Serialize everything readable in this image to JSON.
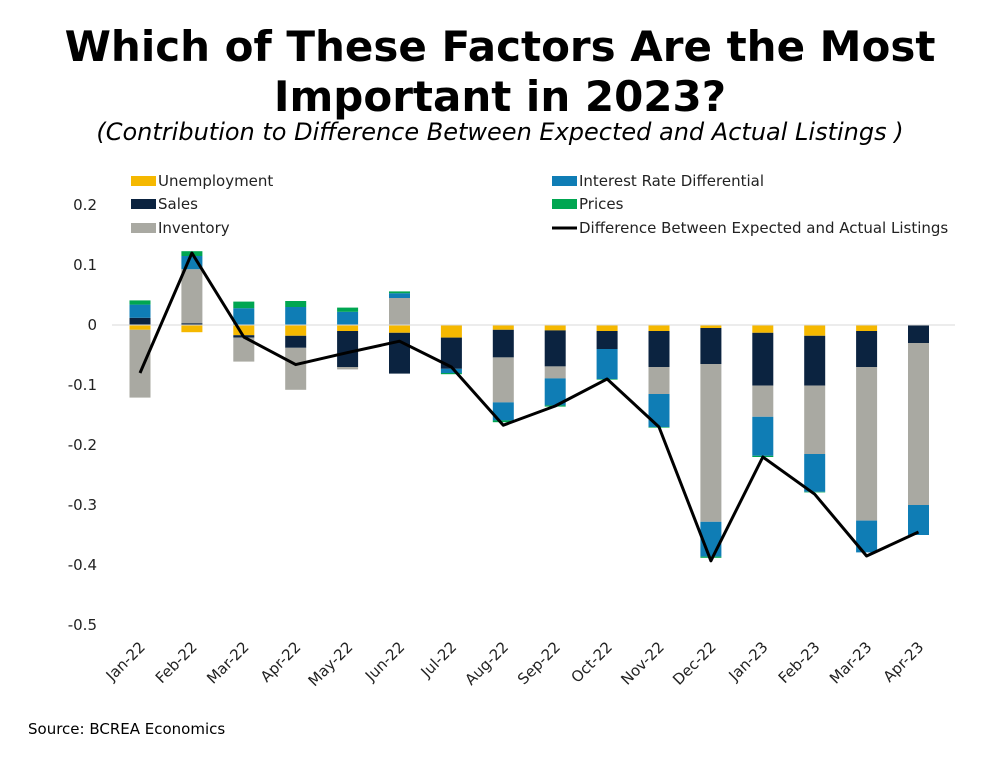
{
  "title": "Which of These Factors Are the Most Important in 2023?",
  "subtitle": "(Contribution to Difference Between Expected and Actual Listings )",
  "source": "Source: BCREA Economics",
  "colors": {
    "unemployment": "#F5B800",
    "interest": "#0F7DB5",
    "sales": "#0B2340",
    "prices": "#00A651",
    "inventory": "#A9A9A2",
    "line": "#000000"
  },
  "chart_data": {
    "type": "bar",
    "stacked": true,
    "categories": [
      "Jan-22",
      "Feb-22",
      "Mar-22",
      "Apr-22",
      "May-22",
      "Jun-22",
      "Jul-22",
      "Aug-22",
      "Sep-22",
      "Oct-22",
      "Nov-22",
      "Dec-22",
      "Jan-23",
      "Feb-23",
      "Mar-23",
      "Apr-23"
    ],
    "ylim": [
      -0.5,
      0.2
    ],
    "yticks": [
      0.2,
      0.1,
      0,
      -0.1,
      -0.2,
      -0.3,
      -0.4,
      -0.5
    ],
    "ytick_labels": [
      "0.2",
      "0.1",
      "0",
      "-0.1",
      "-0.2",
      "-0.3",
      "-0.4",
      "-0.5"
    ],
    "grid": false,
    "legend_position": "top",
    "series": [
      {
        "name": "Unemployment",
        "key": "unemployment",
        "values": [
          -0.008,
          -0.012,
          -0.017,
          -0.018,
          -0.01,
          -0.013,
          -0.021,
          -0.008,
          -0.009,
          -0.01,
          -0.01,
          -0.005,
          -0.013,
          -0.018,
          -0.01,
          0
        ]
      },
      {
        "name": "Sales",
        "key": "sales",
        "values": [
          0.012,
          0.003,
          -0.004,
          -0.02,
          -0.06,
          -0.068,
          -0.052,
          -0.046,
          -0.06,
          -0.03,
          -0.06,
          -0.06,
          -0.088,
          -0.083,
          -0.06,
          -0.03
        ]
      },
      {
        "name": "Inventory",
        "key": "inventory",
        "values": [
          -0.113,
          0.09,
          -0.04,
          -0.07,
          -0.004,
          0.045,
          0,
          -0.075,
          -0.02,
          0,
          -0.045,
          -0.263,
          -0.052,
          -0.114,
          -0.256,
          -0.27
        ]
      },
      {
        "name": "Interest Rate Differential",
        "key": "interest",
        "values": [
          0.022,
          0.022,
          0.028,
          0.03,
          0.022,
          0.008,
          -0.007,
          -0.03,
          -0.045,
          -0.05,
          -0.055,
          -0.058,
          -0.065,
          -0.063,
          -0.053,
          -0.05
        ]
      },
      {
        "name": "Prices",
        "key": "prices",
        "values": [
          0.007,
          0.008,
          0.011,
          0.01,
          0.007,
          0.003,
          -0.002,
          -0.003,
          -0.002,
          -0.001,
          -0.001,
          -0.002,
          -0.002,
          -0.001,
          0,
          0
        ]
      },
      {
        "name": "Difference Between Expected and Actual Listings",
        "key": "line",
        "type": "line",
        "values": [
          -0.08,
          0.12,
          -0.02,
          -0.066,
          -0.046,
          -0.027,
          -0.07,
          -0.167,
          -0.135,
          -0.09,
          -0.17,
          -0.393,
          -0.22,
          -0.282,
          -0.385,
          -0.345
        ]
      }
    ]
  },
  "legend": [
    {
      "label": "Unemployment",
      "key": "unemployment",
      "kind": "box"
    },
    {
      "label": "Sales",
      "key": "sales",
      "kind": "box"
    },
    {
      "label": "Inventory",
      "key": "inventory",
      "kind": "box"
    },
    {
      "label": "Interest Rate Differential",
      "key": "interest",
      "kind": "box"
    },
    {
      "label": "Prices",
      "key": "prices",
      "kind": "box"
    },
    {
      "label": "Difference Between Expected and Actual Listings",
      "key": "line",
      "kind": "line"
    }
  ]
}
